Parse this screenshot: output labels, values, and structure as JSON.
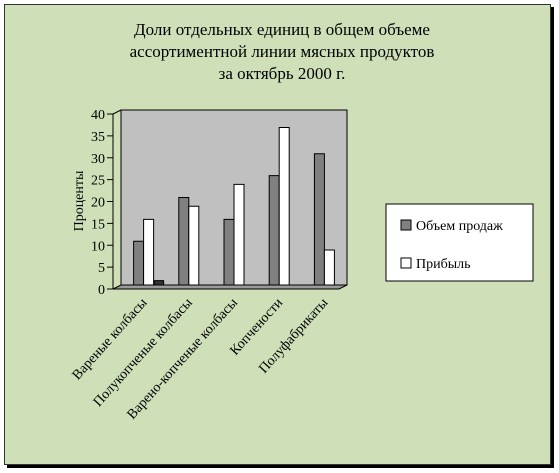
{
  "chart_data": {
    "type": "bar",
    "title_lines": [
      "Доли отдельных единиц в общем объеме",
      "ассортиментной линии мясных продуктов",
      "за октябрь 2000 г."
    ],
    "xlabel": "",
    "ylabel": "Проценты",
    "ylim": [
      0,
      40
    ],
    "yticks": [
      0,
      5,
      10,
      15,
      20,
      25,
      30,
      35,
      40
    ],
    "grid": false,
    "legend_position": "right",
    "categories": [
      "Вареные колбасы",
      "Полукопченые колбасы",
      "Варено-копченые колбасы",
      "Копчености",
      "Полуфабрикаты"
    ],
    "series": [
      {
        "name": "Объем продаж",
        "color": "#808080",
        "values": [
          10,
          20,
          15,
          25,
          30
        ]
      },
      {
        "name": "Прибыль",
        "color": "#ffffff",
        "values": [
          15,
          18,
          23,
          36,
          8
        ]
      }
    ],
    "extra_marks": [
      {
        "category": "Вареные колбасы",
        "value": 1,
        "color": "#333333"
      }
    ],
    "plot_background": "#c0c0c0"
  }
}
